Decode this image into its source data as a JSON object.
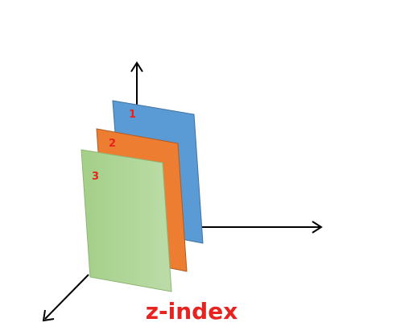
{
  "diagram": {
    "caption": "z-index",
    "caption_color": "#e8231f",
    "layers": [
      {
        "label": "1",
        "fill": "#5b9bd5",
        "stroke": "#41719c"
      },
      {
        "label": "2",
        "fill": "#ed7d31",
        "stroke": "#ae5a21"
      },
      {
        "label": "3",
        "fill_start": "#a3cf88",
        "fill_end": "#bcdca8",
        "stroke": "#8cb572"
      }
    ],
    "axis_color": "#000000"
  }
}
